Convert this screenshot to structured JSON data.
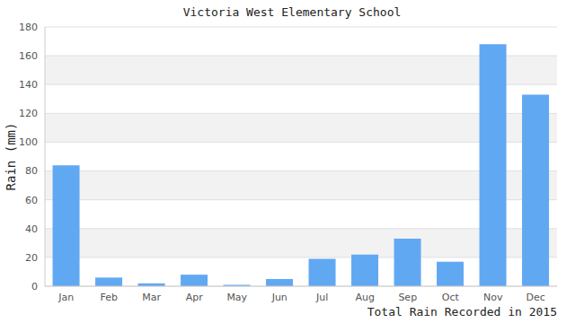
{
  "chart_data": {
    "type": "bar",
    "title": "Victoria West Elementary School",
    "xlabel": "Total Rain Recorded in 2015",
    "ylabel": "Rain (mm)",
    "categories": [
      "Jan",
      "Feb",
      "Mar",
      "Apr",
      "May",
      "Jun",
      "Jul",
      "Aug",
      "Sep",
      "Oct",
      "Nov",
      "Dec"
    ],
    "values": [
      84,
      6,
      2,
      8,
      1,
      5,
      19,
      22,
      33,
      17,
      168,
      133
    ],
    "color": "#61a8f3",
    "ylim": [
      0,
      180
    ],
    "yticks": [
      0,
      20,
      40,
      60,
      80,
      100,
      120,
      140,
      160,
      180
    ],
    "grid": true
  }
}
